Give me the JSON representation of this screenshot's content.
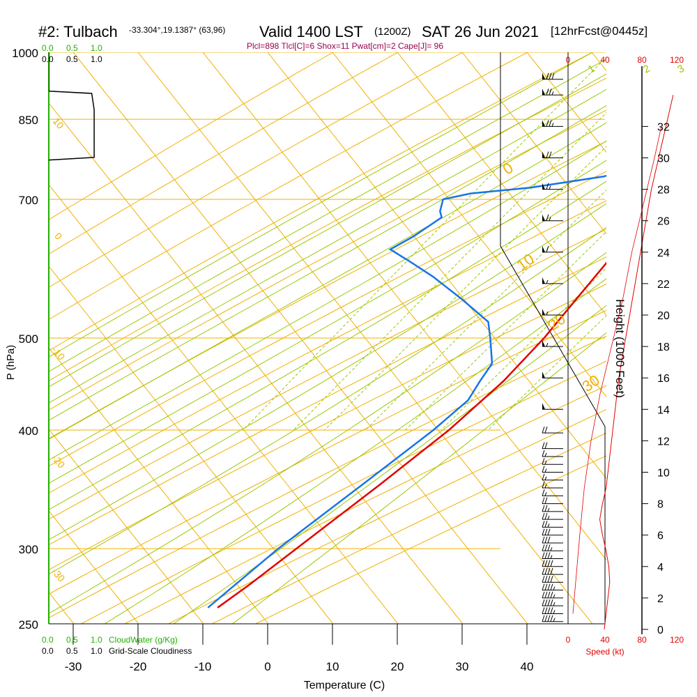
{
  "header": {
    "station": "#2: Tulbach",
    "coords": "-33.304°,19.1387° (63,96)",
    "valid": "Valid 1400 LST",
    "zulu": "(1200Z)",
    "date": "SAT 26 Jun 2021",
    "fcst": "[12hrFcst@0445z]"
  },
  "indices": "Plcl=898 Tlcl[C]=6 Shox=11 Pwat[cm]=2 Cape[J]= 96",
  "colors": {
    "temperature": "#e00000",
    "dewpoint": "#1874e8",
    "parcel": "#7a0040",
    "isotherm": "#f0b000",
    "dry_adiabat": "#f0b000",
    "moist_adiabat": "#9ac800",
    "mixing_ratio": "#9ac800",
    "cloud_green": "#22b000",
    "speed_red": "#e00000"
  },
  "chart_data": {
    "type": "line",
    "title": "Skew-T sounding",
    "xlabel": "Temperature (C)",
    "ylabel": "P (hPa)",
    "right_axis_label": "Height (1000 Feet)",
    "x_ticks": [
      -30,
      -20,
      -10,
      0,
      10,
      20,
      30,
      40
    ],
    "pressure_ticks": [
      1000,
      850,
      700,
      500,
      400,
      300,
      250
    ],
    "height_ticks": [
      0,
      2,
      4,
      6,
      8,
      10,
      12,
      14,
      16,
      18,
      20,
      22,
      24,
      26,
      28,
      30,
      32
    ],
    "speed_ticks_top": [
      "0",
      "40",
      "80",
      "120"
    ],
    "speed_ticks_bottom": [
      "0",
      "40",
      "80",
      "120"
    ],
    "speed_axis_label": "Speed (kt)",
    "cloud_top_labels": [
      "0.0",
      "0.5",
      "1.0"
    ],
    "cloud_top_labels_black": [
      "0.0",
      "0.5",
      "1.0"
    ],
    "cloud_bottom_green_labels": [
      "0.0",
      "0.5",
      "1.0"
    ],
    "cloud_bottom_green_caption": "CloudWater (g/Kg)",
    "cloud_bottom_black_labels": [
      "0.0",
      "0.5",
      "1.0"
    ],
    "cloud_bottom_black_caption": "Grid-Scale Cloudiness",
    "mixing_ratio_labels": [
      "1",
      "2",
      "3",
      "5",
      "8",
      "12",
      "20"
    ],
    "dry_adiabat_left_labels": [
      "10",
      "0",
      "-10",
      "-20",
      "-30"
    ],
    "dry_adiabat_right_labels": [
      "0",
      "10",
      "20",
      "30"
    ],
    "series": [
      {
        "name": "Temperature",
        "points": [
          [
            1000,
            16.2
          ],
          [
            975,
            13.6
          ],
          [
            950,
            11.3
          ],
          [
            925,
            9.6
          ],
          [
            900,
            8.3
          ],
          [
            875,
            7.3
          ],
          [
            850,
            6.9
          ],
          [
            825,
            6.4
          ],
          [
            800,
            6.2
          ],
          [
            780,
            6.3
          ],
          [
            760,
            7.0
          ],
          [
            740,
            7.8
          ],
          [
            720,
            8.3
          ],
          [
            700,
            8.6
          ],
          [
            650,
            8.4
          ],
          [
            600,
            8.0
          ],
          [
            550,
            7.8
          ],
          [
            500,
            7.6
          ],
          [
            450,
            6.6
          ],
          [
            400,
            4.2
          ],
          [
            350,
            0.2
          ],
          [
            300,
            -4.8
          ],
          [
            275,
            -7.6
          ],
          [
            260,
            -9.7
          ]
        ]
      },
      {
        "name": "Dewpoint",
        "points": [
          [
            1000,
            10.2
          ],
          [
            990,
            8.9
          ],
          [
            950,
            8.7
          ],
          [
            900,
            9.6
          ],
          [
            875,
            9.3
          ],
          [
            850,
            8.2
          ],
          [
            800,
            6.8
          ],
          [
            780,
            5.6
          ],
          [
            760,
            2.0
          ],
          [
            740,
            -3.0
          ],
          [
            720,
            -13.0
          ],
          [
            710,
            -21.5
          ],
          [
            700,
            -25.0
          ],
          [
            680,
            -24.0
          ],
          [
            670,
            -23.0
          ],
          [
            640,
            -25.0
          ],
          [
            620,
            -27.0
          ],
          [
            600,
            -22.0
          ],
          [
            580,
            -17.0
          ],
          [
            550,
            -10.0
          ],
          [
            520,
            -3.0
          ],
          [
            500,
            -0.7
          ],
          [
            470,
            2.7
          ],
          [
            450,
            3.0
          ],
          [
            430,
            3.5
          ],
          [
            400,
            1.8
          ],
          [
            350,
            -2.5
          ],
          [
            300,
            -7.6
          ],
          [
            260,
            -11.2
          ]
        ]
      },
      {
        "name": "Parcel",
        "points": [
          [
            1000,
            16.2
          ],
          [
            975,
            13.7
          ],
          [
            950,
            11.4
          ],
          [
            925,
            9.7
          ],
          [
            900,
            8.1
          ],
          [
            850,
            8.2
          ],
          [
            800,
            8.4
          ],
          [
            760,
            8.6
          ]
        ]
      }
    ],
    "surface": {
      "temperature": 16.2,
      "dewpoint": 10.2
    },
    "height_profile_ft": [
      [
        0,
        1000
      ],
      [
        600,
        3000
      ],
      [
        1500,
        6000
      ],
      [
        2500,
        9000
      ],
      [
        4000,
        12000
      ],
      [
        6000,
        15000
      ],
      [
        8500,
        18000
      ],
      [
        11000,
        21000
      ],
      [
        13000,
        24000
      ],
      [
        15500,
        27000
      ],
      [
        18000,
        30000
      ],
      [
        19500,
        32000
      ]
    ],
    "wind_speed_kt": [
      [
        0,
        40
      ],
      [
        1000,
        42
      ],
      [
        2000,
        44
      ],
      [
        3000,
        46
      ],
      [
        4000,
        45
      ],
      [
        5000,
        42
      ],
      [
        6000,
        38
      ],
      [
        7000,
        35
      ],
      [
        8000,
        38
      ],
      [
        9000,
        42
      ],
      [
        10000,
        44
      ],
      [
        11000,
        46
      ],
      [
        12000,
        48
      ],
      [
        14000,
        52
      ],
      [
        16000,
        56
      ],
      [
        18000,
        62
      ],
      [
        20000,
        68
      ],
      [
        22000,
        74
      ],
      [
        24000,
        80
      ],
      [
        26000,
        86
      ],
      [
        28000,
        92
      ],
      [
        30000,
        100
      ],
      [
        32000,
        108
      ],
      [
        34000,
        116
      ]
    ],
    "wind_barbs": [
      {
        "hft": 0.5,
        "kt": 45
      },
      {
        "hft": 1.0,
        "kt": 45
      },
      {
        "hft": 1.5,
        "kt": 45
      },
      {
        "hft": 2.0,
        "kt": 45
      },
      {
        "hft": 2.5,
        "kt": 45
      },
      {
        "hft": 3.0,
        "kt": 40
      },
      {
        "hft": 3.5,
        "kt": 40
      },
      {
        "hft": 4.0,
        "kt": 40
      },
      {
        "hft": 4.5,
        "kt": 35
      },
      {
        "hft": 5.0,
        "kt": 35
      },
      {
        "hft": 5.5,
        "kt": 30
      },
      {
        "hft": 6.0,
        "kt": 30
      },
      {
        "hft": 6.5,
        "kt": 25
      },
      {
        "hft": 7.0,
        "kt": 25
      },
      {
        "hft": 7.5,
        "kt": 25
      },
      {
        "hft": 8.0,
        "kt": 20
      },
      {
        "hft": 8.5,
        "kt": 15
      },
      {
        "hft": 9.0,
        "kt": 15
      },
      {
        "hft": 9.5,
        "kt": 15
      },
      {
        "hft": 10.0,
        "kt": 15
      },
      {
        "hft": 10.5,
        "kt": 15
      },
      {
        "hft": 11.0,
        "kt": 15
      },
      {
        "hft": 11.5,
        "kt": 20
      },
      {
        "hft": 12.5,
        "kt": 20
      },
      {
        "hft": 14.0,
        "kt": 50
      },
      {
        "hft": 16.0,
        "kt": 50
      },
      {
        "hft": 18.0,
        "kt": 55
      },
      {
        "hft": 20.0,
        "kt": 55
      },
      {
        "hft": 22.0,
        "kt": 55
      },
      {
        "hft": 24.0,
        "kt": 60
      },
      {
        "hft": 26.0,
        "kt": 65
      },
      {
        "hft": 28.0,
        "kt": 65
      },
      {
        "hft": 30.0,
        "kt": 70
      },
      {
        "hft": 32.0,
        "kt": 75
      },
      {
        "hft": 34.0,
        "kt": 75
      },
      {
        "hft": 35.0,
        "kt": 80
      }
    ],
    "cloudiness_profile": [
      [
        1000,
        0.0
      ],
      [
        910,
        0.0
      ],
      [
        905,
        0.88
      ],
      [
        870,
        0.93
      ],
      [
        800,
        0.93
      ],
      [
        775,
        0.93
      ],
      [
        770,
        0.0
      ]
    ]
  }
}
